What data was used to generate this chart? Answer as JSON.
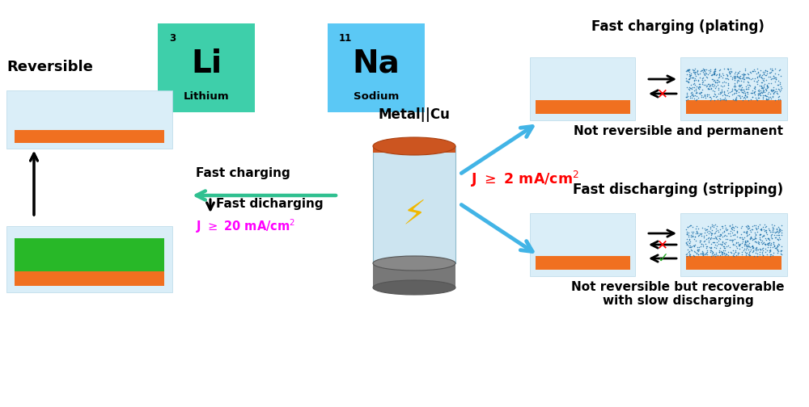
{
  "bg_color": "#ffffff",
  "li_box_color": "#3ecfaa",
  "na_box_color": "#5bc8f5",
  "electrode_box_color": "#daeef8",
  "orange_bar_color": "#f07020",
  "green_bar_color": "#28b828",
  "blue_scatter_color": "#1a6fa8",
  "arrow_blue_color": "#42b4e6",
  "cylinder_top_color": "#cc5520",
  "cylinder_body_top": "#c0ddf0",
  "cylinder_bottom_color": "#707070",
  "figsize": [
    10.0,
    5.04
  ],
  "dpi": 100,
  "xlim": [
    0,
    10
  ],
  "ylim": [
    0,
    5.04
  ]
}
